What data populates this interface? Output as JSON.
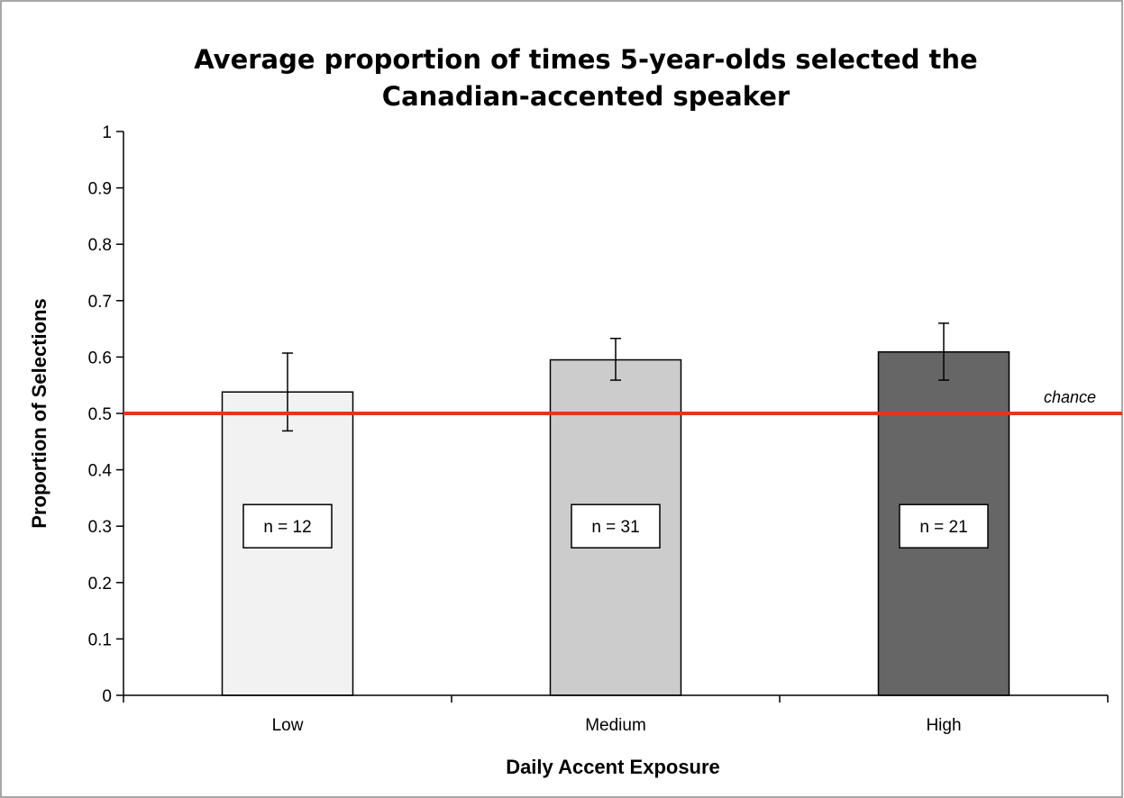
{
  "chart_data": {
    "type": "bar",
    "title_lines": [
      "Average proportion of times 5-year-olds selected the",
      "Canadian-accented speaker"
    ],
    "xlabel": "Daily Accent Exposure",
    "ylabel": "Proportion of Selections",
    "categories": [
      "Low",
      "Medium",
      "High"
    ],
    "values": [
      0.538,
      0.595,
      0.609
    ],
    "error_low": [
      0.469,
      0.559,
      0.559
    ],
    "error_high": [
      0.607,
      0.633,
      0.66
    ],
    "bar_colors": [
      "#f2f2f2",
      "#cccccc",
      "#666666"
    ],
    "sample_labels": [
      "n = 12",
      "n = 31",
      "n = 21"
    ],
    "sample_label_values": [
      0.3,
      0.3,
      0.3
    ],
    "ylim": [
      0,
      1
    ],
    "yticks": [
      0,
      0.1,
      0.2,
      0.3,
      0.4,
      0.5,
      0.6,
      0.7,
      0.8,
      0.9,
      1
    ],
    "ytick_labels": [
      "0",
      "0.1",
      "0.2",
      "0.3",
      "0.4",
      "0.5",
      "0.6",
      "0.7",
      "0.8",
      "0.9",
      "1"
    ],
    "grid": false,
    "reference_line": {
      "value": 0.5,
      "label": "chance",
      "color": "#e8341c"
    }
  }
}
